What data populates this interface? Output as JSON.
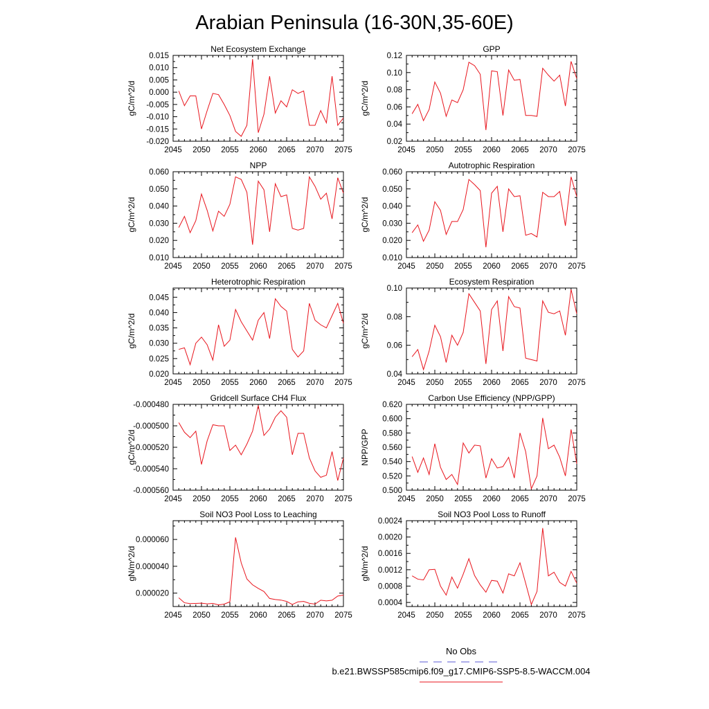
{
  "figure": {
    "title": "Arabian Peninsula (16-30N,35-60E)",
    "line_color": "#e8141c",
    "obs_color": "#5a5ad6"
  },
  "legend": {
    "obs_label": "No Obs",
    "model_label": "b.e21.BWSSP585cmip6.f09_g17.CMIP6-SSP5-8.5-WACCM.004"
  },
  "chart_data": [
    {
      "type": "line",
      "title": "Net Ecosystem Exchange",
      "ylabel": "gC/m^2/d",
      "xlim": [
        2045,
        2075
      ],
      "ylim": [
        -0.02,
        0.015
      ],
      "xticks": [
        2045,
        2050,
        2055,
        2060,
        2065,
        2070,
        2075
      ],
      "yticks": [
        -0.02,
        -0.015,
        -0.01,
        -0.005,
        0.0,
        0.005,
        0.01,
        0.015
      ],
      "ytick_labels": [
        "-0.020",
        "-0.015",
        "-0.010",
        "-0.005",
        "0.000",
        "0.005",
        "0.010",
        "0.015"
      ],
      "x": [
        2046,
        2047,
        2048,
        2049,
        2050,
        2051,
        2052,
        2053,
        2054,
        2055,
        2056,
        2057,
        2058,
        2059,
        2060,
        2061,
        2062,
        2063,
        2064,
        2065,
        2066,
        2067,
        2068,
        2069,
        2070,
        2071,
        2072,
        2073,
        2074,
        2075
      ],
      "values": [
        0.0005,
        -0.0055,
        -0.0015,
        -0.0015,
        -0.015,
        -0.0075,
        -0.0005,
        -0.001,
        -0.005,
        -0.0095,
        -0.016,
        -0.018,
        -0.0135,
        0.0135,
        -0.0165,
        -0.009,
        0.0065,
        -0.0085,
        -0.0035,
        -0.006,
        0.001,
        -0.0005,
        0.0005,
        -0.0135,
        -0.0135,
        -0.0075,
        -0.0125,
        0.0065,
        -0.0135,
        -0.0105
      ]
    },
    {
      "type": "line",
      "title": "GPP",
      "ylabel": "gC/m^2/d",
      "xlim": [
        2045,
        2075
      ],
      "ylim": [
        0.02,
        0.12
      ],
      "xticks": [
        2045,
        2050,
        2055,
        2060,
        2065,
        2070,
        2075
      ],
      "yticks": [
        0.02,
        0.04,
        0.06,
        0.08,
        0.1,
        0.12
      ],
      "ytick_labels": [
        "0.02",
        "0.04",
        "0.06",
        "0.08",
        "0.10",
        "0.12"
      ],
      "x": [
        2046,
        2047,
        2048,
        2049,
        2050,
        2051,
        2052,
        2053,
        2054,
        2055,
        2056,
        2057,
        2058,
        2059,
        2060,
        2061,
        2062,
        2063,
        2064,
        2065,
        2066,
        2067,
        2068,
        2069,
        2070,
        2071,
        2072,
        2073,
        2074,
        2075
      ],
      "values": [
        0.052,
        0.063,
        0.044,
        0.057,
        0.089,
        0.076,
        0.049,
        0.068,
        0.065,
        0.08,
        0.112,
        0.108,
        0.098,
        0.033,
        0.102,
        0.101,
        0.05,
        0.103,
        0.091,
        0.092,
        0.05,
        0.05,
        0.049,
        0.105,
        0.097,
        0.09,
        0.097,
        0.061,
        0.113,
        0.093
      ]
    },
    {
      "type": "line",
      "title": "NPP",
      "ylabel": "gC/m^2/d",
      "xlim": [
        2045,
        2075
      ],
      "ylim": [
        0.01,
        0.06
      ],
      "xticks": [
        2045,
        2050,
        2055,
        2060,
        2065,
        2070,
        2075
      ],
      "yticks": [
        0.01,
        0.02,
        0.03,
        0.04,
        0.05,
        0.06
      ],
      "ytick_labels": [
        "0.010",
        "0.020",
        "0.030",
        "0.040",
        "0.050",
        "0.060"
      ],
      "x": [
        2046,
        2047,
        2048,
        2049,
        2050,
        2051,
        2052,
        2053,
        2054,
        2055,
        2056,
        2057,
        2058,
        2059,
        2060,
        2061,
        2062,
        2063,
        2064,
        2065,
        2066,
        2067,
        2068,
        2069,
        2070,
        2071,
        2072,
        2073,
        2074,
        2075
      ],
      "values": [
        0.0275,
        0.034,
        0.0245,
        0.0315,
        0.047,
        0.0375,
        0.0255,
        0.037,
        0.034,
        0.041,
        0.057,
        0.0555,
        0.048,
        0.0175,
        0.0545,
        0.0495,
        0.025,
        0.053,
        0.0455,
        0.0465,
        0.027,
        0.026,
        0.027,
        0.057,
        0.0515,
        0.044,
        0.0475,
        0.0325,
        0.0565,
        0.0475
      ]
    },
    {
      "type": "line",
      "title": "Autotrophic Respiration",
      "ylabel": "gC/m^2/d",
      "xlim": [
        2045,
        2075
      ],
      "ylim": [
        0.01,
        0.06
      ],
      "xticks": [
        2045,
        2050,
        2055,
        2060,
        2065,
        2070,
        2075
      ],
      "yticks": [
        0.01,
        0.02,
        0.03,
        0.04,
        0.05,
        0.06
      ],
      "ytick_labels": [
        "0.010",
        "0.020",
        "0.030",
        "0.040",
        "0.050",
        "0.060"
      ],
      "x": [
        2046,
        2047,
        2048,
        2049,
        2050,
        2051,
        2052,
        2053,
        2054,
        2055,
        2056,
        2057,
        2058,
        2059,
        2060,
        2061,
        2062,
        2063,
        2064,
        2065,
        2066,
        2067,
        2068,
        2069,
        2070,
        2071,
        2072,
        2073,
        2074,
        2075
      ],
      "values": [
        0.0245,
        0.029,
        0.0195,
        0.026,
        0.0425,
        0.0375,
        0.0235,
        0.031,
        0.031,
        0.038,
        0.0555,
        0.0525,
        0.049,
        0.016,
        0.0475,
        0.0515,
        0.025,
        0.05,
        0.0455,
        0.046,
        0.023,
        0.024,
        0.022,
        0.048,
        0.0455,
        0.0455,
        0.0485,
        0.0285,
        0.057,
        0.0455
      ]
    },
    {
      "type": "line",
      "title": "Heterotrophic Respiration",
      "ylabel": "gC/m^2/d",
      "xlim": [
        2045,
        2075
      ],
      "ylim": [
        0.02,
        0.048
      ],
      "xticks": [
        2045,
        2050,
        2055,
        2060,
        2065,
        2070,
        2075
      ],
      "yticks": [
        0.02,
        0.025,
        0.03,
        0.035,
        0.04,
        0.045
      ],
      "ytick_labels": [
        "0.020",
        "0.025",
        "0.030",
        "0.035",
        "0.040",
        "0.045"
      ],
      "x": [
        2046,
        2047,
        2048,
        2049,
        2050,
        2051,
        2052,
        2053,
        2054,
        2055,
        2056,
        2057,
        2058,
        2059,
        2060,
        2061,
        2062,
        2063,
        2064,
        2065,
        2066,
        2067,
        2068,
        2069,
        2070,
        2071,
        2072,
        2073,
        2074,
        2075
      ],
      "values": [
        0.028,
        0.0285,
        0.023,
        0.03,
        0.032,
        0.0295,
        0.0245,
        0.036,
        0.029,
        0.031,
        0.041,
        0.037,
        0.034,
        0.031,
        0.0375,
        0.04,
        0.0315,
        0.0445,
        0.042,
        0.0405,
        0.028,
        0.0255,
        0.0275,
        0.043,
        0.0375,
        0.036,
        0.035,
        0.039,
        0.043,
        0.0365
      ]
    },
    {
      "type": "line",
      "title": "Ecosystem Respiration",
      "ylabel": "gC/m^2/d",
      "xlim": [
        2045,
        2075
      ],
      "ylim": [
        0.04,
        0.1
      ],
      "xticks": [
        2045,
        2050,
        2055,
        2060,
        2065,
        2070,
        2075
      ],
      "yticks": [
        0.04,
        0.06,
        0.08,
        0.1
      ],
      "ytick_labels": [
        "0.04",
        "0.06",
        "0.08",
        "0.10"
      ],
      "x": [
        2046,
        2047,
        2048,
        2049,
        2050,
        2051,
        2052,
        2053,
        2054,
        2055,
        2056,
        2057,
        2058,
        2059,
        2060,
        2061,
        2062,
        2063,
        2064,
        2065,
        2066,
        2067,
        2068,
        2069,
        2070,
        2071,
        2072,
        2073,
        2074,
        2075
      ],
      "values": [
        0.052,
        0.057,
        0.043,
        0.056,
        0.074,
        0.066,
        0.048,
        0.067,
        0.06,
        0.069,
        0.096,
        0.09,
        0.084,
        0.047,
        0.085,
        0.091,
        0.056,
        0.094,
        0.087,
        0.086,
        0.051,
        0.05,
        0.049,
        0.091,
        0.083,
        0.082,
        0.084,
        0.067,
        0.099,
        0.082
      ]
    },
    {
      "type": "line",
      "title": "Gridcell Surface CH4 Flux",
      "ylabel": "gC/m^2/d",
      "xlim": [
        2045,
        2075
      ],
      "ylim": [
        -0.00056,
        -0.00048
      ],
      "xticks": [
        2045,
        2050,
        2055,
        2060,
        2065,
        2070,
        2075
      ],
      "yticks": [
        -0.00056,
        -0.00054,
        -0.00052,
        -0.0005,
        -0.00048
      ],
      "ytick_labels": [
        "-0.000560",
        "-0.000540",
        "-0.000520",
        "-0.000500",
        "-0.000480"
      ],
      "x": [
        2046,
        2047,
        2048,
        2049,
        2050,
        2051,
        2052,
        2053,
        2054,
        2055,
        2056,
        2057,
        2058,
        2059,
        2060,
        2061,
        2062,
        2063,
        2064,
        2065,
        2066,
        2067,
        2068,
        2069,
        2070,
        2071,
        2072,
        2073,
        2074,
        2075
      ],
      "values": [
        -0.000497,
        -0.000506,
        -0.000511,
        -0.000505,
        -0.000536,
        -0.000514,
        -0.000499,
        -0.0005,
        -0.0005,
        -0.000523,
        -0.000518,
        -0.000527,
        -0.000517,
        -0.000505,
        -0.000481,
        -0.000509,
        -0.000503,
        -0.000492,
        -0.000486,
        -0.000492,
        -0.000527,
        -0.000507,
        -0.000507,
        -0.00053,
        -0.000542,
        -0.000548,
        -0.000546,
        -0.000524,
        -0.000551,
        -0.00053
      ]
    },
    {
      "type": "line",
      "title": "Carbon Use Efficiency (NPP/GPP)",
      "ylabel": "NPP/GPP",
      "xlim": [
        2045,
        2075
      ],
      "ylim": [
        0.5,
        0.62
      ],
      "xticks": [
        2045,
        2050,
        2055,
        2060,
        2065,
        2070,
        2075
      ],
      "yticks": [
        0.5,
        0.52,
        0.54,
        0.56,
        0.58,
        0.6,
        0.62
      ],
      "ytick_labels": [
        "0.500",
        "0.520",
        "0.540",
        "0.560",
        "0.580",
        "0.600",
        "0.620"
      ],
      "x": [
        2046,
        2047,
        2048,
        2049,
        2050,
        2051,
        2052,
        2053,
        2054,
        2055,
        2056,
        2057,
        2058,
        2059,
        2060,
        2061,
        2062,
        2063,
        2064,
        2065,
        2066,
        2067,
        2068,
        2069,
        2070,
        2071,
        2072,
        2073,
        2074,
        2075
      ],
      "values": [
        0.547,
        0.525,
        0.545,
        0.522,
        0.565,
        0.532,
        0.515,
        0.522,
        0.508,
        0.566,
        0.552,
        0.563,
        0.562,
        0.517,
        0.544,
        0.531,
        0.533,
        0.546,
        0.517,
        0.58,
        0.554,
        0.502,
        0.52,
        0.601,
        0.558,
        0.563,
        0.546,
        0.52,
        0.585,
        0.537
      ]
    },
    {
      "type": "line",
      "title": "Soil NO3 Pool Loss to Leaching",
      "ylabel": "gN/m^2/d",
      "xlim": [
        2045,
        2075
      ],
      "ylim": [
        1e-05,
        7.4e-05
      ],
      "xticks": [
        2045,
        2050,
        2055,
        2060,
        2065,
        2070,
        2075
      ],
      "yticks": [
        2e-05,
        4e-05,
        6e-05
      ],
      "ytick_labels": [
        "0.000020",
        "0.000040",
        "0.000060"
      ],
      "x": [
        2046,
        2047,
        2048,
        2049,
        2050,
        2051,
        2052,
        2053,
        2054,
        2055,
        2056,
        2057,
        2058,
        2059,
        2060,
        2061,
        2062,
        2063,
        2064,
        2065,
        2066,
        2067,
        2068,
        2069,
        2070,
        2071,
        2072,
        2073,
        2074,
        2075
      ],
      "values": [
        1.65e-05,
        1.28e-05,
        1.22e-05,
        1.23e-05,
        1.25e-05,
        1.2e-05,
        1.23e-05,
        1.12e-05,
        1.18e-05,
        1.35e-05,
        6.15e-05,
        4.25e-05,
        3.05e-05,
        2.62e-05,
        2.35e-05,
        2.12e-05,
        1.6e-05,
        1.52e-05,
        1.48e-05,
        1.38e-05,
        1.15e-05,
        1.35e-05,
        1.38e-05,
        1.24e-05,
        1.18e-05,
        1.47e-05,
        1.42e-05,
        1.47e-05,
        1.78e-05,
        1.85e-05
      ]
    },
    {
      "type": "line",
      "title": "Soil NO3 Pool Loss to Runoff",
      "ylabel": "gN/m^2/d",
      "xlim": [
        2045,
        2075
      ],
      "ylim": [
        0.0003,
        0.0024
      ],
      "xticks": [
        2045,
        2050,
        2055,
        2060,
        2065,
        2070,
        2075
      ],
      "yticks": [
        0.0004,
        0.0008,
        0.0012,
        0.0016,
        0.002,
        0.0024
      ],
      "ytick_labels": [
        "0.0004",
        "0.0008",
        "0.0012",
        "0.0016",
        "0.0020",
        "0.0024"
      ],
      "x": [
        2046,
        2047,
        2048,
        2049,
        2050,
        2051,
        2052,
        2053,
        2054,
        2055,
        2056,
        2057,
        2058,
        2059,
        2060,
        2061,
        2062,
        2063,
        2064,
        2065,
        2066,
        2067,
        2068,
        2069,
        2070,
        2071,
        2072,
        2073,
        2074,
        2075
      ],
      "values": [
        0.00105,
        0.00097,
        0.00095,
        0.0012,
        0.00121,
        0.0008,
        0.00058,
        0.00102,
        0.00075,
        0.00109,
        0.00147,
        0.00106,
        0.00083,
        0.00065,
        0.00094,
        0.00092,
        0.00063,
        0.0011,
        0.00105,
        0.00137,
        0.00087,
        0.00035,
        0.00067,
        0.00222,
        0.00105,
        0.00114,
        0.00089,
        0.0008,
        0.00116,
        0.00087
      ]
    }
  ]
}
